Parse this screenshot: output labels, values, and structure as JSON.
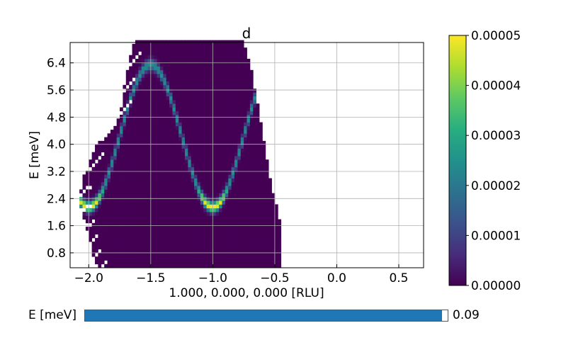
{
  "chart_data": {
    "type": "heatmap",
    "title": "d",
    "xlabel": "1.000, 0.000, 0.000 [RLU]",
    "ylabel": "E [meV]",
    "xlim": [
      -2.15,
      0.7
    ],
    "ylim": [
      0.36,
      7.0
    ],
    "xticks": [
      -2.0,
      -1.5,
      -1.0,
      -0.5,
      0.0,
      0.5
    ],
    "xtick_labels": [
      "−2.0",
      "−1.5",
      "−1.0",
      "−0.5",
      "0.0",
      "0.5"
    ],
    "yticks": [
      0.8,
      1.6,
      2.4,
      3.2,
      4.0,
      4.8,
      5.6,
      6.4
    ],
    "ytick_labels": [
      "0.8",
      "1.6",
      "2.4",
      "3.2",
      "4.0",
      "4.8",
      "5.6",
      "6.4"
    ],
    "grid": true,
    "colormap": "viridis",
    "colorbar": {
      "vmin": 0.0,
      "vmax": 5e-05,
      "ticks": [
        0.0,
        1e-05,
        2e-05,
        3e-05,
        4e-05,
        5e-05
      ],
      "tick_labels": [
        "0.00000",
        "0.00001",
        "0.00002",
        "0.00003",
        "0.00004",
        "0.00005"
      ]
    },
    "dispersion": {
      "description_values": "intensity ridge following E = 4.25 - 2.1*cos(2*pi*(h+1)) meV",
      "minimum": {
        "h": -1.0,
        "E": 2.2
      },
      "maximum": {
        "h": -1.5,
        "E": 6.4
      },
      "peak_intensity": 5e-05
    },
    "coverage": {
      "x_right_edge": -0.45,
      "left_edge_points": [
        [
          0.45,
          -1.93
        ],
        [
          0.8,
          -1.97
        ],
        [
          1.2,
          -2.0
        ],
        [
          1.6,
          -2.02
        ],
        [
          2.0,
          -2.05
        ],
        [
          2.4,
          -2.08
        ],
        [
          3.2,
          -2.03
        ],
        [
          4.0,
          -1.93
        ],
        [
          4.4,
          -1.82
        ],
        [
          4.8,
          -1.75
        ],
        [
          5.6,
          -1.72
        ],
        [
          6.4,
          -1.68
        ],
        [
          7.0,
          -1.63
        ]
      ],
      "right_edge_points": [
        [
          0.45,
          -0.45
        ],
        [
          1.6,
          -0.45
        ],
        [
          2.4,
          -0.5
        ],
        [
          3.2,
          -0.55
        ],
        [
          4.0,
          -0.58
        ],
        [
          4.8,
          -0.62
        ],
        [
          5.6,
          -0.66
        ],
        [
          6.4,
          -0.7
        ],
        [
          7.0,
          -0.75
        ]
      ]
    }
  },
  "slider": {
    "label": "E [meV]",
    "value": "0.09",
    "fill_fraction": 0.985,
    "color": "#1f77b4"
  }
}
